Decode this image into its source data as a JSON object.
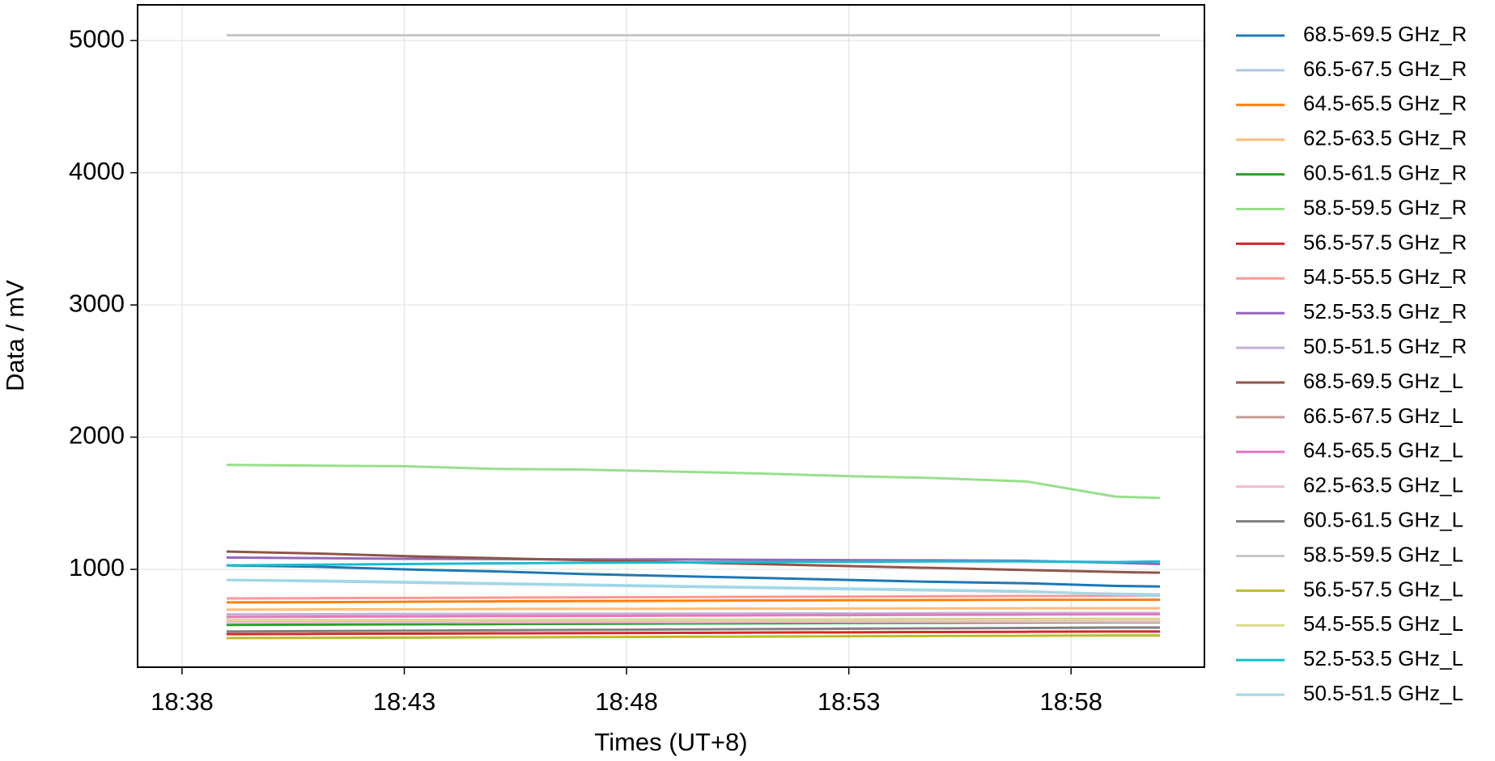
{
  "chart_data": {
    "type": "line",
    "x_label": "Times (UT+8)",
    "y_label": "Data / mV",
    "x": [
      "18:39",
      "18:41",
      "18:43",
      "18:45",
      "18:47",
      "18:49",
      "18:51",
      "18:53",
      "18:55",
      "18:57",
      "18:59",
      "19:00"
    ],
    "xlim": [
      "18:37",
      "19:01"
    ],
    "xticks": [
      "18:38",
      "18:43",
      "18:48",
      "18:53",
      "18:58"
    ],
    "ylim": [
      260,
      5270
    ],
    "yticks": [
      1000,
      2000,
      3000,
      4000,
      5000
    ],
    "grid": true,
    "legend": "outside right",
    "series": [
      {
        "name": "68.5-69.5 GHz_R",
        "color": "#1f77b4",
        "values": [
          1030,
          1020,
          1000,
          985,
          965,
          950,
          935,
          920,
          905,
          895,
          875,
          870
        ]
      },
      {
        "name": "66.5-67.5 GHz_R",
        "color": "#aec7e8",
        "values": [
          920,
          910,
          900,
          890,
          880,
          870,
          860,
          850,
          840,
          830,
          815,
          810
        ]
      },
      {
        "name": "64.5-65.5 GHz_R",
        "color": "#ff7f0e",
        "values": [
          750,
          752,
          755,
          758,
          760,
          762,
          765,
          767,
          768,
          770,
          770,
          770
        ]
      },
      {
        "name": "62.5-63.5 GHz_R",
        "color": "#ffbb78",
        "values": [
          695,
          697,
          698,
          700,
          701,
          702,
          703,
          704,
          705,
          706,
          706,
          706
        ]
      },
      {
        "name": "60.5-61.5 GHz_R",
        "color": "#2ca02c",
        "values": [
          580,
          582,
          584,
          586,
          588,
          590,
          592,
          594,
          596,
          598,
          600,
          600
        ]
      },
      {
        "name": "58.5-59.5 GHz_R",
        "color": "#98df8a",
        "values": [
          1790,
          1785,
          1780,
          1760,
          1755,
          1740,
          1725,
          1705,
          1690,
          1665,
          1550,
          1540
        ]
      },
      {
        "name": "56.5-57.5 GHz_R",
        "color": "#d62728",
        "values": [
          510,
          512,
          514,
          516,
          518,
          520,
          522,
          524,
          526,
          528,
          530,
          530
        ]
      },
      {
        "name": "54.5-55.5 GHz_R",
        "color": "#ff9896",
        "values": [
          780,
          782,
          784,
          786,
          788,
          790,
          792,
          794,
          796,
          798,
          800,
          800
        ]
      },
      {
        "name": "52.5-53.5 GHz_R",
        "color": "#9467bd",
        "values": [
          1090,
          1085,
          1080,
          1078,
          1075,
          1075,
          1072,
          1070,
          1068,
          1065,
          1050,
          1040
        ]
      },
      {
        "name": "50.5-51.5 GHz_R",
        "color": "#c5b0d5",
        "values": [
          660,
          661,
          662,
          663,
          664,
          665,
          666,
          667,
          668,
          669,
          670,
          670
        ]
      },
      {
        "name": "68.5-69.5 GHz_L",
        "color": "#8c564b",
        "values": [
          1135,
          1120,
          1100,
          1085,
          1070,
          1055,
          1040,
          1025,
          1010,
          995,
          980,
          975
        ]
      },
      {
        "name": "66.5-67.5 GHz_L",
        "color": "#c49c94",
        "values": [
          615,
          616,
          617,
          618,
          619,
          620,
          621,
          622,
          623,
          624,
          625,
          625
        ]
      },
      {
        "name": "64.5-65.5 GHz_L",
        "color": "#e377c2",
        "values": [
          640,
          642,
          644,
          646,
          648,
          650,
          652,
          654,
          656,
          658,
          660,
          660
        ]
      },
      {
        "name": "62.5-63.5 GHz_L",
        "color": "#f7b6d2",
        "values": [
          600,
          600,
          601,
          601,
          602,
          602,
          603,
          603,
          604,
          604,
          605,
          605
        ]
      },
      {
        "name": "60.5-61.5 GHz_L",
        "color": "#7f7f7f",
        "values": [
          530,
          533,
          536,
          539,
          542,
          545,
          548,
          551,
          554,
          557,
          560,
          560
        ]
      },
      {
        "name": "58.5-59.5 GHz_L",
        "color": "#c7c7c7",
        "values": [
          5040,
          5040,
          5040,
          5040,
          5040,
          5040,
          5040,
          5040,
          5040,
          5040,
          5040,
          5040
        ]
      },
      {
        "name": "56.5-57.5 GHz_L",
        "color": "#bcbd22",
        "values": [
          480,
          482,
          484,
          486,
          488,
          490,
          492,
          494,
          496,
          498,
          500,
          500
        ]
      },
      {
        "name": "54.5-55.5 GHz_L",
        "color": "#dbdb8d",
        "values": [
          618,
          618,
          619,
          619,
          620,
          620,
          621,
          621,
          622,
          622,
          623,
          623
        ]
      },
      {
        "name": "52.5-53.5 GHz_L",
        "color": "#17becf",
        "values": [
          1030,
          1035,
          1040,
          1045,
          1050,
          1052,
          1055,
          1057,
          1060,
          1060,
          1055,
          1060
        ]
      },
      {
        "name": "50.5-51.5 GHz_L",
        "color": "#9edae5",
        "values": [
          920,
          915,
          905,
          895,
          885,
          875,
          865,
          855,
          845,
          835,
          810,
          800
        ]
      }
    ]
  }
}
